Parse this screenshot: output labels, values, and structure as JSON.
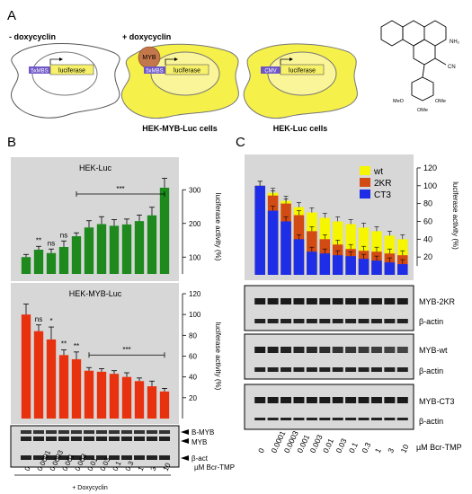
{
  "panel_labels": {
    "a": "A",
    "b": "B",
    "c": "C"
  },
  "panel_a": {
    "cell1": {
      "title": "- doxycyclin",
      "promoter": "5xMBS",
      "gene": "luciferase"
    },
    "cell2": {
      "title": "+ doxycyclin",
      "factor": "MYB",
      "promoter": "5xMBS",
      "gene": "luciferase"
    },
    "cell3": {
      "promoter": "CMV",
      "gene": "luciferase"
    },
    "caption_myb": "HEK-MYB-Luc cells",
    "caption_luc": "HEK-Luc cells",
    "molecule_labels": {
      "nh2": "NH₂",
      "cn": "CN",
      "ome_left": "MeO",
      "ome_right": "OMe",
      "ome_bottom": "OMe"
    },
    "colors": {
      "cell1": "#ffffff",
      "cell2": "#f5f04a",
      "cell3": "#f5f04a",
      "promoter": "#6f57c8",
      "gene": "#f8f26a",
      "myb": "#c4774a"
    }
  },
  "panel_b": {
    "doxycyclin": "+ Doxycyclin",
    "xunit": "µM Bcr-TMP",
    "blot_labels": {
      "bmyb": "B-MYB",
      "myb": "MYB",
      "bact": "β-act"
    }
  },
  "panel_c": {
    "xunit": "µM Bcr-TMP",
    "blots": [
      {
        "top": "MYB-2KR",
        "bottom": "β-actin"
      },
      {
        "top": "MYB-wt",
        "bottom": "β-actin"
      },
      {
        "top": "MYB-CT3",
        "bottom": "β-actin"
      }
    ]
  },
  "chart_data": [
    {
      "id": "hek_luc",
      "type": "bar",
      "title": "HEK-Luc",
      "ylabel": "luciferase activity (%)",
      "ylim": [
        50,
        330
      ],
      "yticks": [
        100,
        200,
        300
      ],
      "categories": [
        "0",
        "0.0001",
        "0.0003",
        "0.001",
        "0.003",
        "0.01",
        "0.03",
        "0.1",
        "0.3",
        "1",
        "3",
        "10"
      ],
      "values": [
        100,
        122,
        112,
        130,
        162,
        188,
        198,
        193,
        197,
        207,
        224,
        306
      ],
      "errors": [
        8,
        10,
        12,
        18,
        10,
        20,
        22,
        18,
        16,
        18,
        24,
        28
      ],
      "annotations": [
        {
          "index": 1,
          "text": "**"
        },
        {
          "index": 2,
          "text": "ns"
        },
        {
          "index": 3,
          "text": "ns"
        },
        {
          "from": 4,
          "to": 11,
          "text": "***"
        }
      ],
      "colors": {
        "bar": "#1e8a1e",
        "background": "#d7d7d7"
      }
    },
    {
      "id": "hek_myb_luc",
      "type": "bar",
      "title": "HEK-MYB-Luc",
      "ylabel": "luciferase activity (%)",
      "ylim": [
        0,
        120
      ],
      "yticks": [
        20,
        40,
        60,
        80,
        100,
        120
      ],
      "categories": [
        "0",
        "0.0001",
        "0.0003",
        "0.001",
        "0.003",
        "0.01",
        "0.03",
        "0.1",
        "0.3",
        "1",
        "3",
        "10"
      ],
      "values": [
        100,
        84,
        76,
        61,
        57,
        46,
        45,
        43,
        40,
        36,
        31,
        26
      ],
      "errors": [
        10,
        6,
        12,
        5,
        7,
        3,
        3,
        3,
        4,
        3,
        5,
        3
      ],
      "annotations": [
        {
          "index": 1,
          "text": "ns"
        },
        {
          "index": 2,
          "text": "*"
        },
        {
          "index": 3,
          "text": "**"
        },
        {
          "index": 4,
          "text": "**"
        },
        {
          "from": 5,
          "to": 11,
          "text": "***"
        }
      ],
      "colors": {
        "bar": "#e8320f",
        "background": "#d7d7d7"
      }
    },
    {
      "id": "panel_c_chart",
      "type": "bar",
      "ylabel": "luciferase activity (%)",
      "ylim": [
        0,
        125
      ],
      "yticks": [
        20,
        40,
        60,
        80,
        100,
        120
      ],
      "categories": [
        "0",
        "0.0001",
        "0.0003",
        "0.001",
        "0.003",
        "0.01",
        "0.03",
        "0.1",
        "0.3",
        "1",
        "3",
        "10"
      ],
      "legend_position": "top-right",
      "series": [
        {
          "name": "wt",
          "color": "#f6f600",
          "values": [
            100,
            92,
            83,
            76,
            70,
            64,
            60,
            57,
            53,
            49,
            44,
            40
          ]
        },
        {
          "name": "2KR",
          "color": "#d24a14",
          "values": [
            100,
            89,
            80,
            67,
            49,
            40,
            34,
            29,
            27,
            26,
            24,
            22
          ]
        },
        {
          "name": "CT3",
          "color": "#1e2ee6",
          "values": [
            100,
            72,
            60,
            40,
            26,
            24,
            22,
            21,
            18,
            16,
            14,
            12
          ]
        }
      ],
      "colors": {
        "background": "#d7d7d7"
      }
    }
  ]
}
